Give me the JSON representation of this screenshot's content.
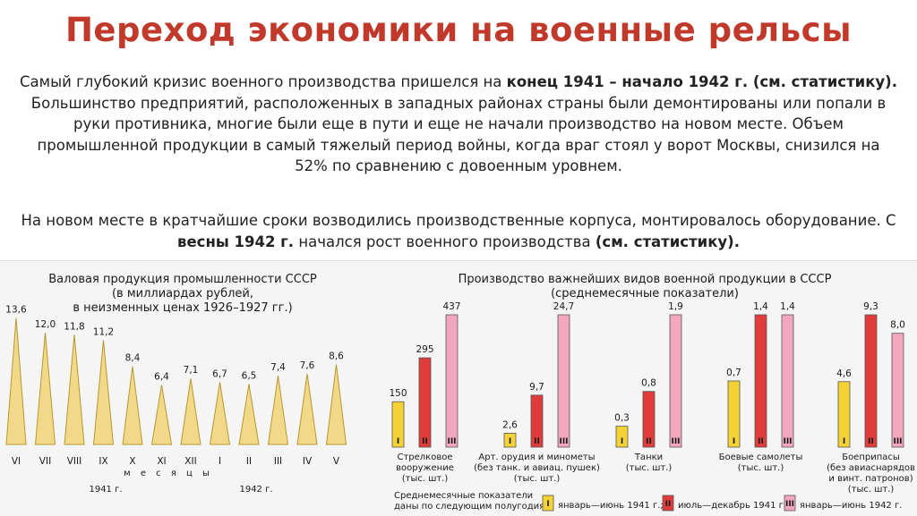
{
  "title": "Переход экономики на военные рельсы",
  "paragraph1": {
    "t1": "Самый глубокий кризис военного производства пришелся на ",
    "b1": "конец 1941 – начало 1942 г. (см. статистику).",
    "t2": " Большинство предприятий, расположенных в западных районах страны были демонтированы или попали в руки противника, многие были еще в пути и еще не начали производство на новом месте. Объем промышленной продукции в самый тяжелый период войны, когда враг стоял у ворот Москвы, снизился на 52% по сравнению с довоенным уровнем."
  },
  "paragraph2": {
    "t1": "На новом месте в кратчайшие сроки возводились производственные корпуса, монтировалось оборудование. С ",
    "b1": "весны 1942 г.",
    "t2": " начался рост военного производства ",
    "b2": "(см. статистику)."
  },
  "colors": {
    "title": "#c0392b",
    "triangle_fill": "#f2d98a",
    "triangle_stroke": "#b8962e",
    "bar_I": "#f4d235",
    "bar_II": "#e03c3c",
    "bar_III": "#f2a7be",
    "bar_stroke": "#555555"
  },
  "chart_data": [
    {
      "type": "bar",
      "title": "Валовая продукция промышленности СССР",
      "subtitle": [
        "(в миллиардах рублей,",
        "в неизменных ценах 1926–1927 гг.)"
      ],
      "categories": [
        "VI",
        "VII",
        "VIII",
        "IX",
        "X",
        "XI",
        "XII",
        "I",
        "II",
        "III",
        "IV",
        "V"
      ],
      "values": [
        13.6,
        12.0,
        11.8,
        11.2,
        8.4,
        6.4,
        7.1,
        6.7,
        6.5,
        7.4,
        7.6,
        8.6
      ],
      "value_labels": [
        "13,6",
        "12,0",
        "11,8",
        "11,2",
        "8,4",
        "6,4",
        "7,1",
        "6,7",
        "6,5",
        "7,4",
        "7,6",
        "8,6"
      ],
      "xlabel": "м е с я ц ы",
      "year_labels": [
        "1941 г.",
        "1942 г."
      ],
      "mark_shape": "triangle",
      "ylim": [
        0,
        14
      ]
    },
    {
      "type": "bar",
      "title": "Производство важнейших видов военной продукции в СССР",
      "subtitle": "(среднемесячные показатели)",
      "series_labels": [
        "I",
        "II",
        "III"
      ],
      "groups": [
        {
          "lines": [
            "Стрелковое",
            "вооружение",
            "(тыс. шт.)"
          ],
          "values": [
            150,
            295,
            437
          ],
          "value_labels": [
            "150",
            "295",
            "437"
          ]
        },
        {
          "lines": [
            "Арт. орудия и минометы",
            "(без танк. и авиац. пушек)",
            "(тыс. шт.)"
          ],
          "values": [
            2.6,
            9.7,
            24.7
          ],
          "value_labels": [
            "2,6",
            "9,7",
            "24,7"
          ]
        },
        {
          "lines": [
            "Танки",
            "(тыс. шт.)"
          ],
          "values": [
            0.3,
            0.8,
            1.9
          ],
          "value_labels": [
            "0,3",
            "0,8",
            "1,9"
          ]
        },
        {
          "lines": [
            "Боевые самолеты",
            "(тыс. шт.)"
          ],
          "values": [
            0.7,
            1.4,
            1.4
          ],
          "value_labels": [
            "0,7",
            "1,4",
            "1,4"
          ]
        },
        {
          "lines": [
            "Боеприпасы",
            "(без авиаснарядов",
            "и винт. патронов)",
            "(тыс. шт.)"
          ],
          "values": [
            4.6,
            9.3,
            8.0
          ],
          "value_labels": [
            "4,6",
            "9,3",
            "8,0"
          ]
        }
      ],
      "legend_caption": [
        "Среднемесячные показатели",
        "даны по следующим полугодиям"
      ],
      "legend": [
        "январь—июнь 1941 г.;",
        "июль—декабрь 1941 г.;",
        "январь—июнь 1942 г."
      ]
    }
  ]
}
